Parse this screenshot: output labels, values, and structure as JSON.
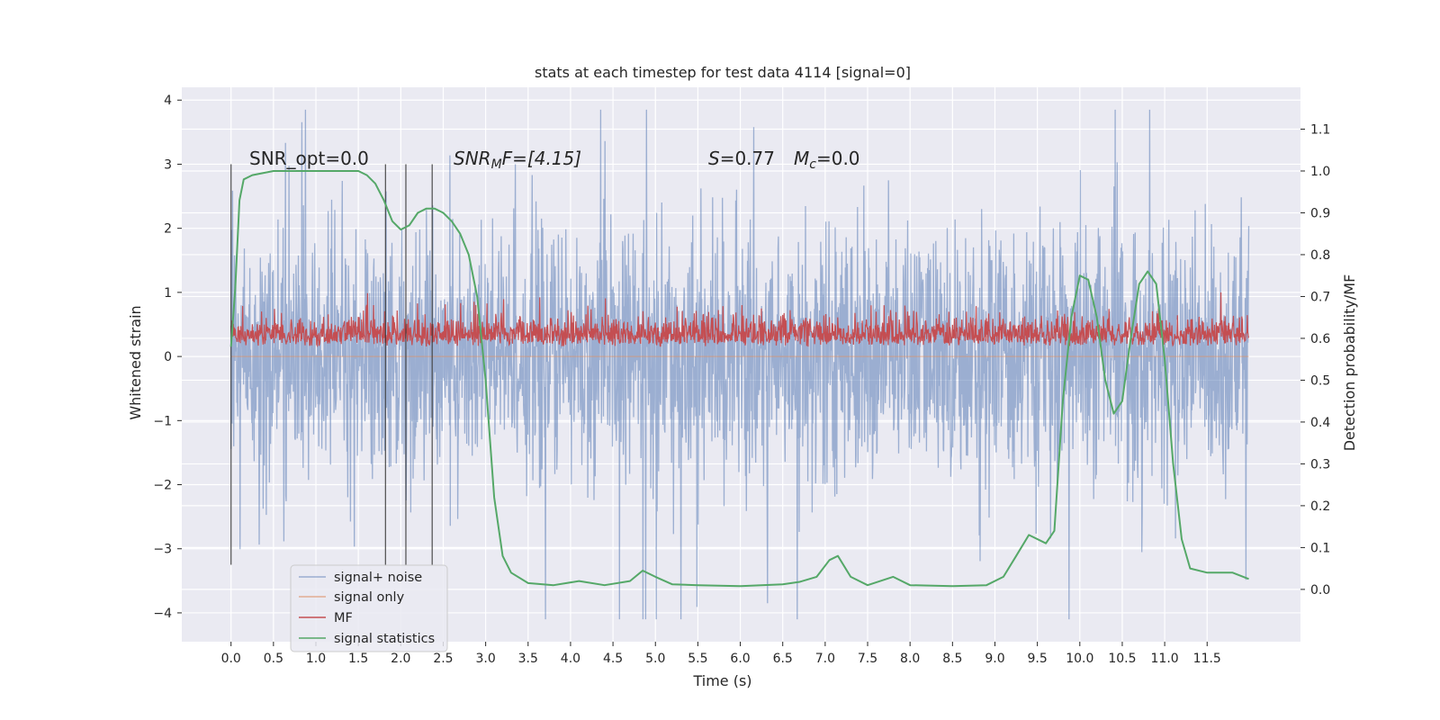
{
  "chart_data": {
    "type": "line",
    "title": "stats at each timestep for test data 4114 [signal=0]",
    "xlabel": "Time (s)",
    "ylabel": "Whitened strain",
    "y2label": "Detection probability/MF",
    "xlim": [
      -0.58,
      12.6
    ],
    "ylim": [
      -4.45,
      4.2
    ],
    "y2lim": [
      -0.125,
      1.2
    ],
    "x_ticks": [
      "0.0",
      "0.5",
      "1.0",
      "1.5",
      "2.0",
      "2.5",
      "3.0",
      "3.5",
      "4.0",
      "4.5",
      "5.0",
      "5.5",
      "6.0",
      "6.5",
      "7.0",
      "7.5",
      "8.0",
      "8.5",
      "9.0",
      "9.5",
      "10.0",
      "10.5",
      "11.0",
      "11.5"
    ],
    "y_ticks": [
      "4",
      "3",
      "2",
      "1",
      "0",
      "−1",
      "−2",
      "−3",
      "−4"
    ],
    "y2_ticks": [
      "0.0",
      "0.1",
      "0.2",
      "0.3",
      "0.4",
      "0.5",
      "0.6",
      "0.7",
      "0.8",
      "0.9",
      "1.0",
      "1.1"
    ],
    "annotations": {
      "snr_opt": "SNR_opt=0.0",
      "snr_mf_base": "SNR",
      "snr_mf_sub": "M",
      "snr_mf_rest": "F=[4.15]",
      "s_label": "S",
      "s_value": "=0.77",
      "mc_base": "M",
      "mc_sub": "c",
      "mc_value": "=0.0"
    },
    "legend": {
      "placement": "lower-left",
      "entries": [
        "signal+ noise",
        "signal only",
        "MF",
        "signal statistics"
      ]
    },
    "colors": {
      "background": "#eaeaf2",
      "grid": "#ffffff",
      "signal_noise": "#4c72b0",
      "signal_only": "#dd8452",
      "mf": "#c44e52",
      "signal_statistics": "#55a868",
      "vlines": "#333333"
    },
    "series": [
      {
        "name": "signal+ noise",
        "axis": "left",
        "x_range": [
          0.0,
          11.99
        ],
        "description_values": {
          "typical_abs": 1.1,
          "peak_max": 3.85,
          "peak_min": -4.1
        }
      },
      {
        "name": "signal only",
        "axis": "left",
        "x": [
          0.0,
          11.99
        ],
        "y": [
          0.0,
          0.0
        ]
      },
      {
        "name": "MF",
        "axis": "left",
        "x_range": [
          0.0,
          11.99
        ],
        "description_values": {
          "baseline": 0.15,
          "typical_max": 0.6,
          "peak_max": 1.0
        }
      },
      {
        "name": "signal statistics",
        "axis": "right",
        "x": [
          0.0,
          0.05,
          0.1,
          0.15,
          0.25,
          0.5,
          1.0,
          1.3,
          1.5,
          1.6,
          1.7,
          1.8,
          1.9,
          2.0,
          2.1,
          2.2,
          2.3,
          2.4,
          2.5,
          2.6,
          2.7,
          2.8,
          2.9,
          3.0,
          3.1,
          3.2,
          3.3,
          3.5,
          3.8,
          4.1,
          4.4,
          4.7,
          4.85,
          5.0,
          5.2,
          5.5,
          6.0,
          6.5,
          6.7,
          6.9,
          7.05,
          7.15,
          7.3,
          7.5,
          7.8,
          8.0,
          8.5,
          8.9,
          9.1,
          9.25,
          9.4,
          9.6,
          9.7,
          9.8,
          9.9,
          10.0,
          10.1,
          10.2,
          10.3,
          10.4,
          10.5,
          10.6,
          10.7,
          10.8,
          10.9,
          11.0,
          11.1,
          11.2,
          11.3,
          11.5,
          11.8,
          11.99
        ],
        "y": [
          0.58,
          0.72,
          0.93,
          0.98,
          0.99,
          1.0,
          1.0,
          1.0,
          1.0,
          0.99,
          0.97,
          0.93,
          0.88,
          0.86,
          0.87,
          0.9,
          0.91,
          0.91,
          0.9,
          0.88,
          0.85,
          0.8,
          0.7,
          0.5,
          0.22,
          0.08,
          0.04,
          0.015,
          0.01,
          0.02,
          0.01,
          0.02,
          0.045,
          0.03,
          0.012,
          0.01,
          0.008,
          0.012,
          0.018,
          0.03,
          0.07,
          0.08,
          0.03,
          0.01,
          0.03,
          0.01,
          0.008,
          0.01,
          0.03,
          0.08,
          0.13,
          0.11,
          0.14,
          0.45,
          0.65,
          0.75,
          0.74,
          0.65,
          0.5,
          0.42,
          0.45,
          0.6,
          0.73,
          0.76,
          0.73,
          0.55,
          0.3,
          0.12,
          0.05,
          0.04,
          0.04,
          0.025
        ]
      }
    ],
    "vertical_lines_x": [
      0.0,
      1.82,
      2.06,
      2.37
    ],
    "grid": true
  }
}
